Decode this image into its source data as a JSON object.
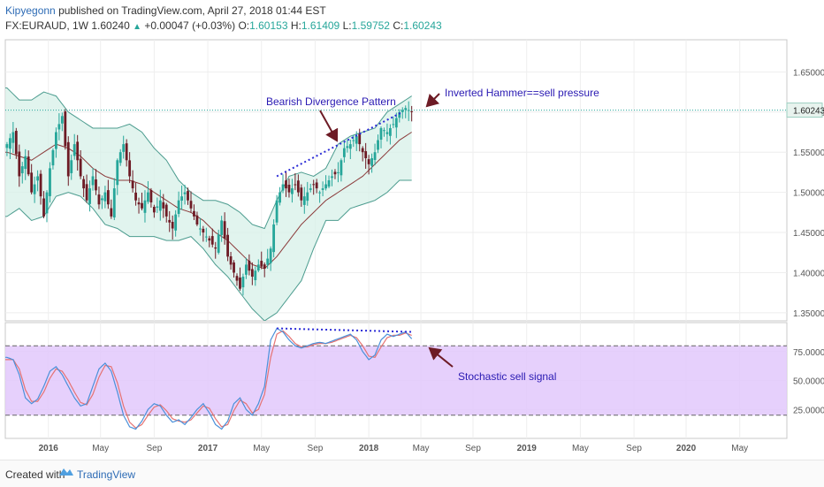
{
  "header": {
    "author": "Kipyegonn",
    "published": "published on TradingView.com, April 27, 2018 01:44 EST",
    "symbol": "FX:EURAUD, 1W",
    "last": "1.60240",
    "change": "+0.00047 (+0.03%)",
    "o_label": "O:",
    "o_value": "1.60153",
    "h_label": "H:",
    "h_value": "1.61409",
    "l_label": "L:",
    "l_value": "1.59752",
    "c_label": "C:",
    "c_value": "1.60243"
  },
  "footer": {
    "created": "Created with",
    "brand": "TradingView"
  },
  "colors": {
    "up": "#26a69a",
    "down": "#6d1b25",
    "band_fill": "#d7f0e8",
    "band_line": "#4c9c8f",
    "basis": "#8b3a3a",
    "stoch_k": "#4a90d9",
    "stoch_d": "#e57373",
    "stoch_fill": "#e2c8fb",
    "annotation_text": "#2a1ab3",
    "annotation_arrow": "#6d1b25",
    "divergence": "#2b2bd6",
    "price_tag_bg": "#e8f3ee"
  },
  "chart_data": {
    "type": "candlestick",
    "price_axis": {
      "min": 1.34,
      "max": 1.69,
      "ticks": [
        "1.35000",
        "1.40000",
        "1.45000",
        "1.50000",
        "1.55000",
        "1.60000",
        "1.65000"
      ]
    },
    "stoch_axis": {
      "min": 0,
      "max": 100,
      "ticks": [
        "25.0000",
        "50.0000",
        "75.0000"
      ],
      "overbought": 80,
      "oversold": 20
    },
    "time_axis": {
      "ticks": [
        {
          "label": "2016",
          "bold": true,
          "t": 0.5
        },
        {
          "label": "May",
          "bold": false,
          "t": 17.5
        },
        {
          "label": "Sep",
          "bold": false,
          "t": 35
        },
        {
          "label": "2017",
          "bold": true,
          "t": 52.5
        },
        {
          "label": "May",
          "bold": false,
          "t": 70
        },
        {
          "label": "Sep",
          "bold": false,
          "t": 87.5
        },
        {
          "label": "2018",
          "bold": true,
          "t": 105
        },
        {
          "label": "May",
          "bold": false,
          "t": 122
        },
        {
          "label": "Sep",
          "bold": false,
          "t": 139
        },
        {
          "label": "2019",
          "bold": true,
          "t": 156.5
        },
        {
          "label": "May",
          "bold": false,
          "t": 174
        },
        {
          "label": "Sep",
          "bold": false,
          "t": 191.5
        },
        {
          "label": "2020",
          "bold": true,
          "t": 208.5
        },
        {
          "label": "May",
          "bold": false,
          "t": 226
        }
      ]
    },
    "current_price": "1.60243",
    "price_key": [
      [
        -13,
        1.56
      ],
      [
        -11,
        1.575
      ],
      [
        -9,
        1.52
      ],
      [
        -7,
        1.545
      ],
      [
        -5,
        1.5
      ],
      [
        -3,
        1.52
      ],
      [
        -1,
        1.47
      ],
      [
        1,
        1.53
      ],
      [
        3,
        1.575
      ],
      [
        5,
        1.595
      ],
      [
        7,
        1.52
      ],
      [
        9,
        1.56
      ],
      [
        11,
        1.52
      ],
      [
        13,
        1.49
      ],
      [
        15,
        1.52
      ],
      [
        17,
        1.485
      ],
      [
        19,
        1.5
      ],
      [
        21,
        1.47
      ],
      [
        23,
        1.54
      ],
      [
        25,
        1.56
      ],
      [
        27,
        1.52
      ],
      [
        29,
        1.49
      ],
      [
        31,
        1.48
      ],
      [
        33,
        1.5
      ],
      [
        35,
        1.475
      ],
      [
        37,
        1.49
      ],
      [
        39,
        1.47
      ],
      [
        41,
        1.455
      ],
      [
        43,
        1.49
      ],
      [
        45,
        1.5
      ],
      [
        47,
        1.48
      ],
      [
        49,
        1.46
      ],
      [
        51,
        1.45
      ],
      [
        53,
        1.44
      ],
      [
        55,
        1.43
      ],
      [
        57,
        1.465
      ],
      [
        59,
        1.42
      ],
      [
        61,
        1.4
      ],
      [
        63,
        1.38
      ],
      [
        65,
        1.41
      ],
      [
        67,
        1.395
      ],
      [
        69,
        1.41
      ],
      [
        71,
        1.405
      ],
      [
        73,
        1.43
      ],
      [
        75,
        1.49
      ],
      [
        77,
        1.51
      ],
      [
        79,
        1.5
      ],
      [
        81,
        1.51
      ],
      [
        83,
        1.49
      ],
      [
        85,
        1.5
      ],
      [
        87,
        1.51
      ],
      [
        89,
        1.5
      ],
      [
        91,
        1.51
      ],
      [
        93,
        1.52
      ],
      [
        95,
        1.525
      ],
      [
        97,
        1.555
      ],
      [
        99,
        1.56
      ],
      [
        101,
        1.57
      ],
      [
        103,
        1.55
      ],
      [
        105,
        1.535
      ],
      [
        107,
        1.55
      ],
      [
        109,
        1.58
      ],
      [
        111,
        1.575
      ],
      [
        113,
        1.585
      ],
      [
        115,
        1.6
      ],
      [
        117,
        1.605
      ],
      [
        119,
        1.6
      ]
    ],
    "upper_band": [
      [
        -13,
        1.63
      ],
      [
        -9,
        1.615
      ],
      [
        -5,
        1.615
      ],
      [
        -1,
        1.625
      ],
      [
        3,
        1.62
      ],
      [
        7,
        1.6
      ],
      [
        11,
        1.59
      ],
      [
        15,
        1.58
      ],
      [
        19,
        1.58
      ],
      [
        23,
        1.58
      ],
      [
        27,
        1.585
      ],
      [
        31,
        1.575
      ],
      [
        35,
        1.555
      ],
      [
        39,
        1.54
      ],
      [
        43,
        1.515
      ],
      [
        47,
        1.5
      ],
      [
        51,
        1.49
      ],
      [
        55,
        1.49
      ],
      [
        59,
        1.485
      ],
      [
        63,
        1.475
      ],
      [
        67,
        1.46
      ],
      [
        71,
        1.455
      ],
      [
        75,
        1.49
      ],
      [
        79,
        1.52
      ],
      [
        83,
        1.525
      ],
      [
        87,
        1.52
      ],
      [
        91,
        1.53
      ],
      [
        95,
        1.56
      ],
      [
        99,
        1.57
      ],
      [
        103,
        1.575
      ],
      [
        107,
        1.58
      ],
      [
        111,
        1.6
      ],
      [
        115,
        1.61
      ],
      [
        119,
        1.62
      ]
    ],
    "basis": [
      [
        -13,
        1.55
      ],
      [
        -9,
        1.545
      ],
      [
        -5,
        1.54
      ],
      [
        -1,
        1.55
      ],
      [
        3,
        1.56
      ],
      [
        7,
        1.555
      ],
      [
        11,
        1.545
      ],
      [
        15,
        1.53
      ],
      [
        19,
        1.52
      ],
      [
        23,
        1.515
      ],
      [
        27,
        1.515
      ],
      [
        31,
        1.51
      ],
      [
        35,
        1.5
      ],
      [
        39,
        1.49
      ],
      [
        43,
        1.48
      ],
      [
        47,
        1.475
      ],
      [
        51,
        1.465
      ],
      [
        55,
        1.45
      ],
      [
        59,
        1.44
      ],
      [
        63,
        1.425
      ],
      [
        67,
        1.41
      ],
      [
        71,
        1.405
      ],
      [
        75,
        1.42
      ],
      [
        79,
        1.44
      ],
      [
        83,
        1.46
      ],
      [
        87,
        1.475
      ],
      [
        91,
        1.49
      ],
      [
        95,
        1.5
      ],
      [
        99,
        1.51
      ],
      [
        103,
        1.52
      ],
      [
        107,
        1.535
      ],
      [
        111,
        1.55
      ],
      [
        115,
        1.565
      ],
      [
        119,
        1.575
      ]
    ],
    "lower_band": [
      [
        -13,
        1.47
      ],
      [
        -9,
        1.48
      ],
      [
        -5,
        1.465
      ],
      [
        -1,
        1.47
      ],
      [
        3,
        1.495
      ],
      [
        7,
        1.5
      ],
      [
        11,
        1.495
      ],
      [
        15,
        1.48
      ],
      [
        19,
        1.46
      ],
      [
        23,
        1.455
      ],
      [
        27,
        1.445
      ],
      [
        31,
        1.445
      ],
      [
        35,
        1.445
      ],
      [
        39,
        1.44
      ],
      [
        43,
        1.44
      ],
      [
        47,
        1.445
      ],
      [
        51,
        1.43
      ],
      [
        55,
        1.41
      ],
      [
        59,
        1.395
      ],
      [
        63,
        1.375
      ],
      [
        67,
        1.355
      ],
      [
        71,
        1.34
      ],
      [
        75,
        1.35
      ],
      [
        79,
        1.37
      ],
      [
        83,
        1.39
      ],
      [
        87,
        1.43
      ],
      [
        91,
        1.465
      ],
      [
        95,
        1.465
      ],
      [
        99,
        1.48
      ],
      [
        103,
        1.485
      ],
      [
        107,
        1.49
      ],
      [
        111,
        1.5
      ],
      [
        115,
        1.515
      ],
      [
        119,
        1.515
      ]
    ],
    "stoch_k_key": [
      [
        -13,
        70
      ],
      [
        -11,
        68
      ],
      [
        -9,
        55
      ],
      [
        -7,
        35
      ],
      [
        -5,
        30
      ],
      [
        -3,
        34
      ],
      [
        -1,
        45
      ],
      [
        1,
        58
      ],
      [
        3,
        62
      ],
      [
        5,
        55
      ],
      [
        7,
        45
      ],
      [
        9,
        35
      ],
      [
        11,
        28
      ],
      [
        13,
        30
      ],
      [
        15,
        45
      ],
      [
        17,
        60
      ],
      [
        19,
        65
      ],
      [
        21,
        58
      ],
      [
        23,
        40
      ],
      [
        25,
        20
      ],
      [
        27,
        10
      ],
      [
        29,
        8
      ],
      [
        31,
        15
      ],
      [
        33,
        25
      ],
      [
        35,
        30
      ],
      [
        37,
        28
      ],
      [
        39,
        20
      ],
      [
        41,
        14
      ],
      [
        43,
        16
      ],
      [
        45,
        12
      ],
      [
        47,
        18
      ],
      [
        49,
        25
      ],
      [
        51,
        30
      ],
      [
        53,
        22
      ],
      [
        55,
        12
      ],
      [
        57,
        8
      ],
      [
        59,
        15
      ],
      [
        61,
        30
      ],
      [
        63,
        35
      ],
      [
        65,
        25
      ],
      [
        67,
        20
      ],
      [
        69,
        30
      ],
      [
        71,
        45
      ],
      [
        73,
        85
      ],
      [
        75,
        95
      ],
      [
        77,
        92
      ],
      [
        79,
        85
      ],
      [
        81,
        80
      ],
      [
        83,
        78
      ],
      [
        85,
        80
      ],
      [
        87,
        82
      ],
      [
        89,
        83
      ],
      [
        91,
        82
      ],
      [
        93,
        84
      ],
      [
        95,
        86
      ],
      [
        97,
        88
      ],
      [
        99,
        90
      ],
      [
        101,
        85
      ],
      [
        103,
        75
      ],
      [
        105,
        68
      ],
      [
        107,
        72
      ],
      [
        109,
        85
      ],
      [
        111,
        90
      ],
      [
        113,
        88
      ],
      [
        115,
        90
      ],
      [
        117,
        92
      ],
      [
        119,
        86
      ]
    ],
    "stoch_d_key": [
      [
        -13,
        68
      ],
      [
        -11,
        68
      ],
      [
        -9,
        60
      ],
      [
        -7,
        42
      ],
      [
        -5,
        32
      ],
      [
        -3,
        32
      ],
      [
        -1,
        40
      ],
      [
        1,
        52
      ],
      [
        3,
        60
      ],
      [
        5,
        58
      ],
      [
        7,
        50
      ],
      [
        9,
        40
      ],
      [
        11,
        31
      ],
      [
        13,
        29
      ],
      [
        15,
        38
      ],
      [
        17,
        53
      ],
      [
        19,
        63
      ],
      [
        21,
        62
      ],
      [
        23,
        48
      ],
      [
        25,
        28
      ],
      [
        27,
        14
      ],
      [
        29,
        9
      ],
      [
        31,
        12
      ],
      [
        33,
        20
      ],
      [
        35,
        27
      ],
      [
        37,
        29
      ],
      [
        39,
        24
      ],
      [
        41,
        17
      ],
      [
        43,
        15
      ],
      [
        45,
        14
      ],
      [
        47,
        16
      ],
      [
        49,
        22
      ],
      [
        51,
        28
      ],
      [
        53,
        26
      ],
      [
        55,
        17
      ],
      [
        57,
        10
      ],
      [
        59,
        12
      ],
      [
        61,
        24
      ],
      [
        63,
        33
      ],
      [
        65,
        30
      ],
      [
        67,
        22
      ],
      [
        69,
        25
      ],
      [
        71,
        38
      ],
      [
        73,
        70
      ],
      [
        75,
        90
      ],
      [
        77,
        93
      ],
      [
        79,
        88
      ],
      [
        81,
        82
      ],
      [
        83,
        79
      ],
      [
        85,
        79
      ],
      [
        87,
        81
      ],
      [
        89,
        82
      ],
      [
        91,
        82
      ],
      [
        93,
        83
      ],
      [
        95,
        85
      ],
      [
        97,
        87
      ],
      [
        99,
        89
      ],
      [
        101,
        87
      ],
      [
        103,
        80
      ],
      [
        105,
        71
      ],
      [
        107,
        70
      ],
      [
        109,
        79
      ],
      [
        111,
        87
      ],
      [
        113,
        89
      ],
      [
        115,
        89
      ],
      [
        117,
        91
      ],
      [
        119,
        89
      ]
    ],
    "annotations": [
      {
        "text": "Bearish Divergence Pattern"
      },
      {
        "text": "Inverted Hammer==sell pressure"
      },
      {
        "text": "Stochastic sell signal"
      }
    ],
    "divergence_price": [
      [
        75,
        1.52
      ],
      [
        116,
        1.6
      ]
    ],
    "divergence_stoch": [
      [
        75,
        95
      ],
      [
        119,
        92
      ]
    ]
  }
}
